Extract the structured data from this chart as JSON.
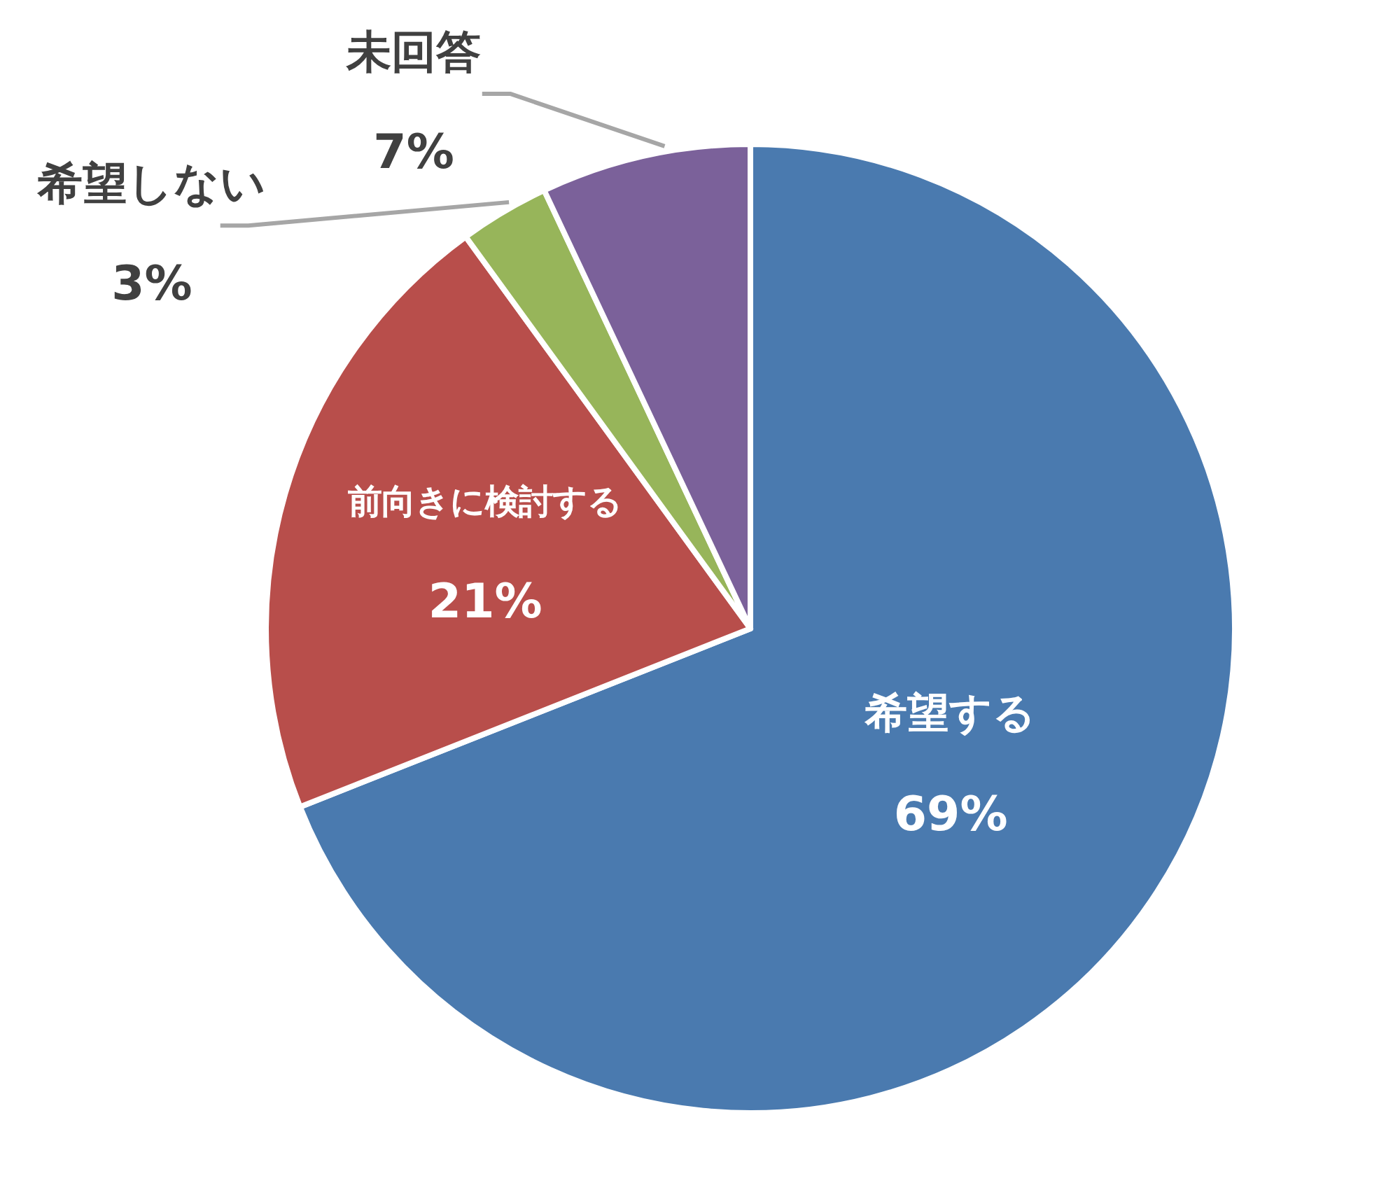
{
  "chart_data": {
    "type": "pie",
    "categories": [
      "希望する",
      "前向きに検討する",
      "希望しない",
      "未回答"
    ],
    "values": [
      69,
      21,
      3,
      7
    ],
    "value_labels": [
      "69%",
      "21%",
      "3%",
      "7%"
    ],
    "colors": [
      "#4a7aaf",
      "#b84e4b",
      "#97b55a",
      "#7b619a"
    ]
  }
}
